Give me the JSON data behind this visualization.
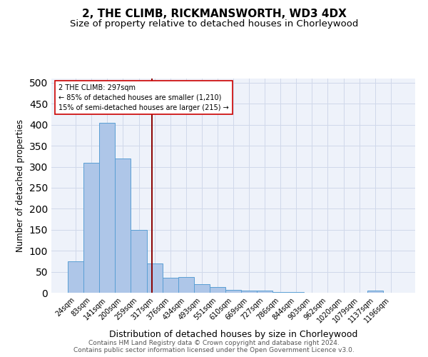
{
  "title": "2, THE CLIMB, RICKMANSWORTH, WD3 4DX",
  "subtitle": "Size of property relative to detached houses in Chorleywood",
  "xlabel": "Distribution of detached houses by size in Chorleywood",
  "ylabel": "Number of detached properties",
  "bar_labels": [
    "24sqm",
    "83sqm",
    "141sqm",
    "200sqm",
    "259sqm",
    "317sqm",
    "376sqm",
    "434sqm",
    "493sqm",
    "551sqm",
    "610sqm",
    "669sqm",
    "727sqm",
    "786sqm",
    "844sqm",
    "903sqm",
    "962sqm",
    "1020sqm",
    "1079sqm",
    "1137sqm",
    "1196sqm"
  ],
  "bar_values": [
    75,
    310,
    405,
    320,
    150,
    70,
    35,
    37,
    20,
    13,
    6,
    5,
    5,
    2,
    1,
    0,
    0,
    0,
    0,
    5,
    0
  ],
  "bar_color": "#aec6e8",
  "bar_edgecolor": "#5a9fd4",
  "bg_color": "#eef2fa",
  "grid_color": "#d0d8ea",
  "vline_x": 4.85,
  "vline_color": "#8b0000",
  "annotation_text": "2 THE CLIMB: 297sqm\n← 85% of detached houses are smaller (1,210)\n15% of semi-detached houses are larger (215) →",
  "annotation_box_color": "#ffffff",
  "annotation_box_edgecolor": "#cc0000",
  "footnote1": "Contains HM Land Registry data © Crown copyright and database right 2024.",
  "footnote2": "Contains public sector information licensed under the Open Government Licence v3.0.",
  "ylim": [
    0,
    510
  ],
  "title_fontsize": 11,
  "subtitle_fontsize": 9.5,
  "xlabel_fontsize": 9,
  "ylabel_fontsize": 8.5,
  "tick_fontsize": 7,
  "footnote_fontsize": 6.5
}
